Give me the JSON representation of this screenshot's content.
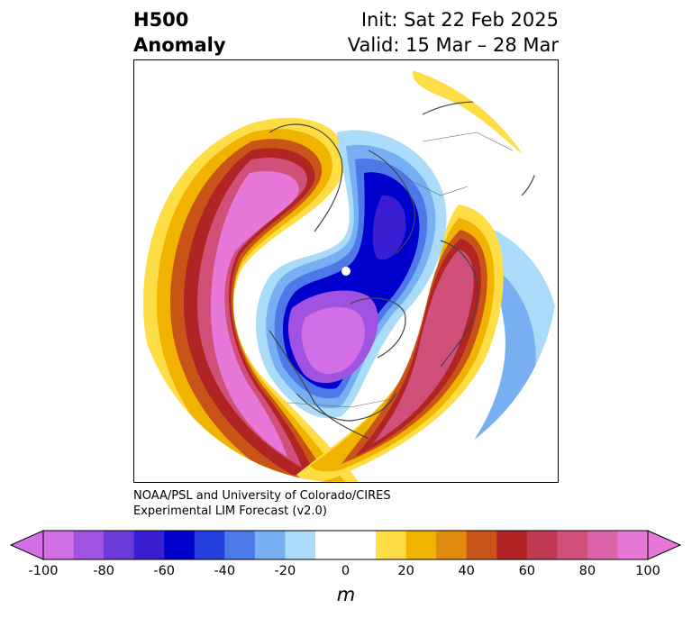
{
  "header": {
    "field_line1": "H500",
    "field_line2": "Anomaly",
    "init_label": "Init: Sat 22 Feb 2025",
    "valid_label": "Valid: 15 Mar – 28 Mar"
  },
  "credits": {
    "line1": "NOAA/PSL and University of Colorado/CIRES",
    "line2": "Experimental LIM Forecast (v2.0)"
  },
  "colorbar": {
    "units": "m",
    "ticks": [
      "-100",
      "-80",
      "-60",
      "-40",
      "-20",
      "0",
      "20",
      "40",
      "60",
      "80",
      "100"
    ],
    "colors": [
      "#d26fe6",
      "#a052e0",
      "#6a3bd9",
      "#3a1ed1",
      "#0000cc",
      "#2540dc",
      "#4d78e8",
      "#78aef2",
      "#aadcfa",
      "#ffffff",
      "#ffffff",
      "#ffdd44",
      "#f0b400",
      "#e08a10",
      "#c85418",
      "#b22424",
      "#c23a52",
      "#d0507a",
      "#dc64aa",
      "#e878d8"
    ],
    "extend": "both"
  },
  "map": {
    "projection": "north-polar-stereographic",
    "field": "500 hPa geopotential height anomaly",
    "features": [
      {
        "name": "negative-anomaly-pole",
        "min_value": -100
      },
      {
        "name": "positive-anomaly-north-pacific",
        "max_value": 100
      },
      {
        "name": "positive-anomaly-atlantic",
        "max_value": 100
      },
      {
        "name": "negative-anomaly-eurasia",
        "min_value": -60
      }
    ]
  }
}
